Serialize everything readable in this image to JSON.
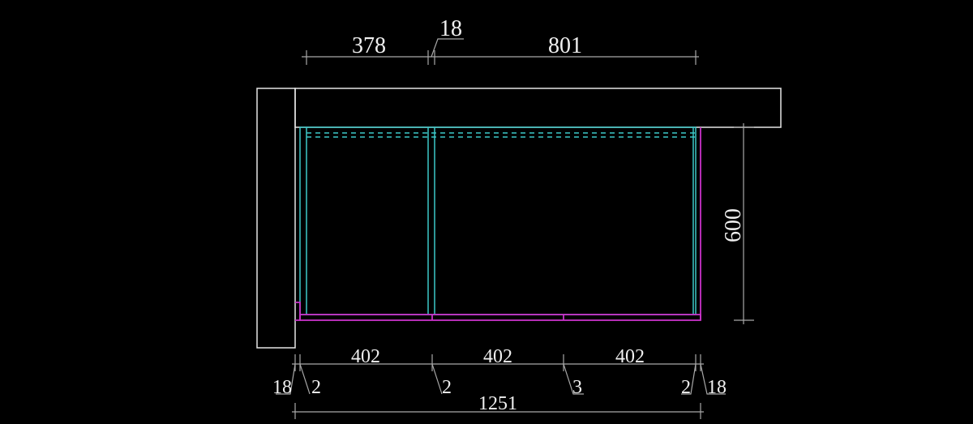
{
  "drawing": {
    "colors": {
      "background": "#000000",
      "wall": "#e6e6e6",
      "cabinet": "#3cc8c8",
      "panel": "#c832c8",
      "dimension": "#a8a8a8"
    },
    "top_dims": {
      "left": "378",
      "gap": "18",
      "right": "801"
    },
    "side_dim": "600",
    "bottom_dims": {
      "door1": "402",
      "door2": "402",
      "door3": "402",
      "wall_gap_left": "18",
      "gap1": "2",
      "gap2": "2",
      "gap3": "3",
      "gap4": "2",
      "wall_gap_right": "18"
    },
    "overall_dim": "1251"
  }
}
